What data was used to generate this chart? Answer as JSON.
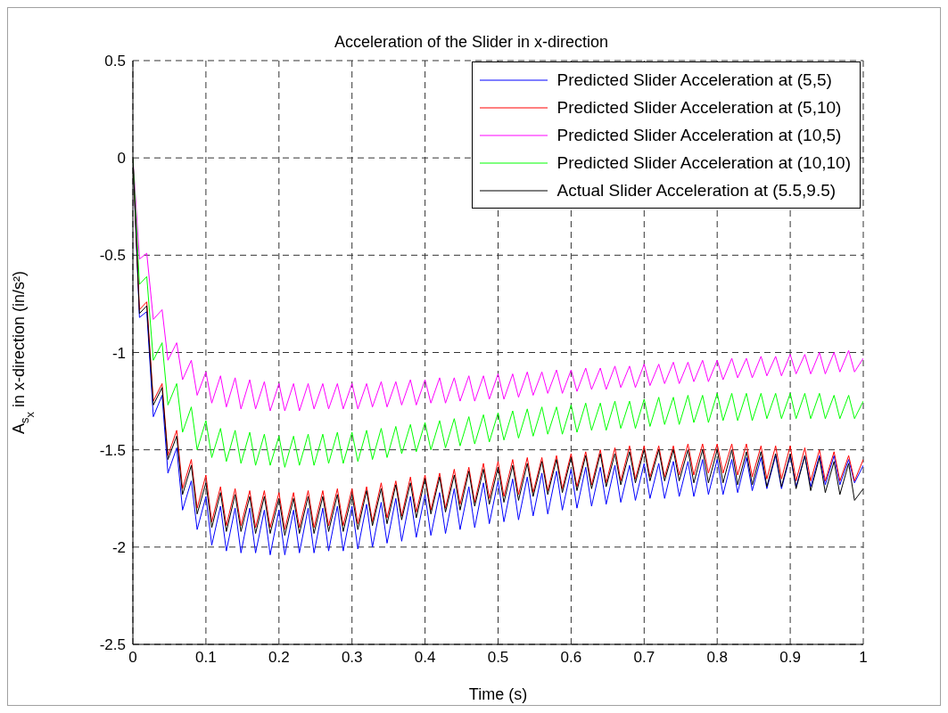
{
  "chart_data": {
    "type": "line",
    "title": "Acceleration of the Slider in x-direction",
    "xlabel": "Time (s)",
    "ylabel": "A$_{s}$$_{x}$ in x-direction (in/s²)",
    "xlim": [
      0,
      1
    ],
    "xticks": [
      0,
      0.1,
      0.2,
      0.3,
      0.4,
      0.5,
      0.6,
      0.7,
      0.8,
      0.9,
      1
    ],
    "ylim": [
      -2.5,
      0.5
    ],
    "yticks": [
      -2.5,
      -2,
      -1.5,
      -1,
      -0.5,
      0,
      0.5
    ],
    "grid": true,
    "legend": "top right",
    "line_style": "solid",
    "marker": "none",
    "x": [
      0,
      0.009,
      0.019,
      0.028,
      0.04,
      0.048,
      0.06,
      0.068,
      0.08,
      0.088,
      0.1,
      0.108,
      0.12,
      0.128,
      0.14,
      0.148,
      0.16,
      0.168,
      0.18,
      0.188,
      0.2,
      0.208,
      0.22,
      0.228,
      0.24,
      0.248,
      0.26,
      0.268,
      0.28,
      0.288,
      0.3,
      0.308,
      0.32,
      0.328,
      0.34,
      0.348,
      0.36,
      0.368,
      0.38,
      0.388,
      0.4,
      0.408,
      0.42,
      0.428,
      0.44,
      0.448,
      0.46,
      0.468,
      0.48,
      0.488,
      0.5,
      0.508,
      0.52,
      0.528,
      0.54,
      0.548,
      0.56,
      0.568,
      0.58,
      0.588,
      0.6,
      0.608,
      0.62,
      0.628,
      0.64,
      0.648,
      0.66,
      0.668,
      0.68,
      0.688,
      0.7,
      0.708,
      0.72,
      0.728,
      0.74,
      0.748,
      0.76,
      0.768,
      0.78,
      0.788,
      0.8,
      0.808,
      0.82,
      0.828,
      0.84,
      0.848,
      0.86,
      0.868,
      0.88,
      0.888,
      0.9,
      0.908,
      0.92,
      0.928,
      0.94,
      0.948,
      0.96,
      0.968,
      0.98,
      0.988,
      1
    ],
    "series": [
      {
        "name": "Predicted Slider Acceleration at (5,5)",
        "color": "#0000ff",
        "values": [
          0,
          -0.82,
          -0.79,
          -1.33,
          -1.22,
          -1.62,
          -1.49,
          -1.81,
          -1.66,
          -1.91,
          -1.74,
          -1.99,
          -1.79,
          -2.02,
          -1.8,
          -2.03,
          -1.8,
          -2.03,
          -1.81,
          -2.04,
          -1.81,
          -2.04,
          -1.81,
          -2.03,
          -1.8,
          -2.03,
          -1.8,
          -2.02,
          -1.79,
          -2.02,
          -1.79,
          -2.01,
          -1.78,
          -2.0,
          -1.77,
          -1.98,
          -1.75,
          -1.97,
          -1.74,
          -1.95,
          -1.73,
          -1.94,
          -1.72,
          -1.93,
          -1.7,
          -1.91,
          -1.69,
          -1.9,
          -1.67,
          -1.88,
          -1.66,
          -1.87,
          -1.65,
          -1.86,
          -1.64,
          -1.84,
          -1.62,
          -1.83,
          -1.61,
          -1.81,
          -1.6,
          -1.8,
          -1.59,
          -1.79,
          -1.59,
          -1.78,
          -1.58,
          -1.77,
          -1.58,
          -1.76,
          -1.57,
          -1.75,
          -1.57,
          -1.75,
          -1.56,
          -1.74,
          -1.56,
          -1.74,
          -1.55,
          -1.73,
          -1.55,
          -1.73,
          -1.55,
          -1.72,
          -1.54,
          -1.71,
          -1.54,
          -1.7,
          -1.53,
          -1.7,
          -1.53,
          -1.69,
          -1.53,
          -1.69,
          -1.53,
          -1.68,
          -1.53,
          -1.68,
          -1.55,
          -1.67,
          -1.58
        ]
      },
      {
        "name": "Predicted Slider Acceleration at (5,10)",
        "color": "#ff0000",
        "values": [
          0,
          -0.78,
          -0.74,
          -1.25,
          -1.16,
          -1.53,
          -1.4,
          -1.7,
          -1.55,
          -1.8,
          -1.63,
          -1.87,
          -1.69,
          -1.89,
          -1.7,
          -1.89,
          -1.71,
          -1.9,
          -1.71,
          -1.9,
          -1.72,
          -1.91,
          -1.72,
          -1.9,
          -1.71,
          -1.9,
          -1.71,
          -1.89,
          -1.7,
          -1.89,
          -1.7,
          -1.88,
          -1.69,
          -1.87,
          -1.67,
          -1.85,
          -1.66,
          -1.84,
          -1.64,
          -1.82,
          -1.63,
          -1.81,
          -1.62,
          -1.8,
          -1.6,
          -1.78,
          -1.59,
          -1.77,
          -1.57,
          -1.75,
          -1.56,
          -1.74,
          -1.55,
          -1.73,
          -1.54,
          -1.72,
          -1.54,
          -1.71,
          -1.53,
          -1.7,
          -1.52,
          -1.69,
          -1.51,
          -1.68,
          -1.5,
          -1.67,
          -1.49,
          -1.66,
          -1.48,
          -1.65,
          -1.48,
          -1.64,
          -1.48,
          -1.64,
          -1.48,
          -1.63,
          -1.47,
          -1.63,
          -1.47,
          -1.62,
          -1.47,
          -1.62,
          -1.47,
          -1.63,
          -1.47,
          -1.64,
          -1.48,
          -1.65,
          -1.48,
          -1.65,
          -1.48,
          -1.66,
          -1.49,
          -1.66,
          -1.5,
          -1.66,
          -1.51,
          -1.66,
          -1.53,
          -1.66,
          -1.55
        ]
      },
      {
        "name": "Predicted Slider Acceleration at (10,5)",
        "color": "#ff00ff",
        "values": [
          0,
          -0.52,
          -0.49,
          -0.83,
          -0.78,
          -1.04,
          -0.95,
          -1.14,
          -1.04,
          -1.22,
          -1.1,
          -1.26,
          -1.12,
          -1.28,
          -1.13,
          -1.29,
          -1.14,
          -1.29,
          -1.15,
          -1.3,
          -1.16,
          -1.3,
          -1.16,
          -1.3,
          -1.16,
          -1.29,
          -1.16,
          -1.29,
          -1.16,
          -1.29,
          -1.16,
          -1.29,
          -1.16,
          -1.28,
          -1.15,
          -1.28,
          -1.15,
          -1.27,
          -1.14,
          -1.27,
          -1.14,
          -1.26,
          -1.13,
          -1.26,
          -1.13,
          -1.25,
          -1.12,
          -1.25,
          -1.12,
          -1.24,
          -1.11,
          -1.24,
          -1.11,
          -1.23,
          -1.1,
          -1.22,
          -1.1,
          -1.21,
          -1.09,
          -1.21,
          -1.09,
          -1.2,
          -1.08,
          -1.19,
          -1.08,
          -1.19,
          -1.07,
          -1.18,
          -1.07,
          -1.18,
          -1.06,
          -1.17,
          -1.06,
          -1.16,
          -1.05,
          -1.16,
          -1.05,
          -1.15,
          -1.04,
          -1.15,
          -1.04,
          -1.14,
          -1.03,
          -1.13,
          -1.03,
          -1.13,
          -1.02,
          -1.12,
          -1.02,
          -1.12,
          -1.01,
          -1.11,
          -1.01,
          -1.11,
          -1.0,
          -1.11,
          -1.0,
          -1.1,
          -0.99,
          -1.1,
          -1.03
        ]
      },
      {
        "name": "Predicted Slider Acceleration at (10,10)",
        "color": "#00ff00",
        "values": [
          0,
          -0.65,
          -0.61,
          -1.04,
          -0.95,
          -1.27,
          -1.16,
          -1.41,
          -1.28,
          -1.5,
          -1.35,
          -1.54,
          -1.39,
          -1.56,
          -1.4,
          -1.57,
          -1.41,
          -1.58,
          -1.42,
          -1.58,
          -1.43,
          -1.59,
          -1.43,
          -1.58,
          -1.42,
          -1.58,
          -1.42,
          -1.57,
          -1.41,
          -1.57,
          -1.41,
          -1.56,
          -1.4,
          -1.55,
          -1.39,
          -1.54,
          -1.38,
          -1.52,
          -1.37,
          -1.51,
          -1.36,
          -1.5,
          -1.35,
          -1.49,
          -1.34,
          -1.48,
          -1.33,
          -1.47,
          -1.32,
          -1.46,
          -1.31,
          -1.45,
          -1.3,
          -1.44,
          -1.29,
          -1.43,
          -1.28,
          -1.42,
          -1.28,
          -1.42,
          -1.27,
          -1.41,
          -1.26,
          -1.4,
          -1.26,
          -1.4,
          -1.25,
          -1.39,
          -1.25,
          -1.39,
          -1.24,
          -1.38,
          -1.23,
          -1.37,
          -1.23,
          -1.37,
          -1.22,
          -1.36,
          -1.22,
          -1.36,
          -1.21,
          -1.35,
          -1.21,
          -1.35,
          -1.21,
          -1.35,
          -1.21,
          -1.34,
          -1.21,
          -1.34,
          -1.21,
          -1.34,
          -1.21,
          -1.34,
          -1.21,
          -1.34,
          -1.22,
          -1.34,
          -1.22,
          -1.34,
          -1.25
        ]
      },
      {
        "name": "Actual Slider Acceleration at (5.5,9.5)",
        "color": "#000000",
        "values": [
          0,
          -0.8,
          -0.76,
          -1.27,
          -1.18,
          -1.55,
          -1.43,
          -1.73,
          -1.58,
          -1.83,
          -1.67,
          -1.9,
          -1.72,
          -1.92,
          -1.73,
          -1.92,
          -1.74,
          -1.93,
          -1.74,
          -1.93,
          -1.75,
          -1.94,
          -1.75,
          -1.93,
          -1.74,
          -1.93,
          -1.74,
          -1.92,
          -1.73,
          -1.92,
          -1.73,
          -1.91,
          -1.71,
          -1.89,
          -1.7,
          -1.88,
          -1.68,
          -1.86,
          -1.67,
          -1.85,
          -1.65,
          -1.83,
          -1.64,
          -1.82,
          -1.63,
          -1.81,
          -1.61,
          -1.79,
          -1.6,
          -1.78,
          -1.59,
          -1.77,
          -1.58,
          -1.76,
          -1.57,
          -1.74,
          -1.56,
          -1.73,
          -1.55,
          -1.72,
          -1.54,
          -1.71,
          -1.53,
          -1.7,
          -1.52,
          -1.69,
          -1.52,
          -1.68,
          -1.51,
          -1.67,
          -1.5,
          -1.66,
          -1.5,
          -1.66,
          -1.5,
          -1.66,
          -1.5,
          -1.67,
          -1.5,
          -1.67,
          -1.5,
          -1.67,
          -1.5,
          -1.68,
          -1.51,
          -1.68,
          -1.51,
          -1.69,
          -1.52,
          -1.69,
          -1.52,
          -1.7,
          -1.53,
          -1.71,
          -1.54,
          -1.72,
          -1.56,
          -1.73,
          -1.57,
          -1.76,
          -1.7
        ]
      }
    ]
  }
}
